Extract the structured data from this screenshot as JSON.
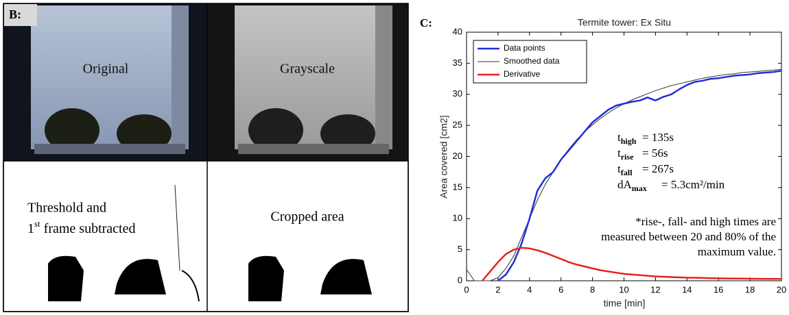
{
  "panel_b": {
    "label": "B:",
    "images": [
      {
        "label": "Original"
      },
      {
        "label": "Grayscale"
      },
      {
        "label": "Threshold and",
        "label_2": {
          "number": "1",
          "suffix": "st",
          "rest": " frame subtracted"
        }
      },
      {
        "label": "Cropped area"
      }
    ]
  },
  "chart_data": {
    "type": "line",
    "panel_label": "C:",
    "title": "Termite tower: Ex Situ",
    "xlabel": "time [min]",
    "ylabel": "Area covered [cm2]",
    "xlim": [
      0,
      20
    ],
    "xticks": [
      0,
      2,
      4,
      6,
      8,
      10,
      12,
      14,
      16,
      18,
      20
    ],
    "ylim": [
      0,
      40
    ],
    "yticks": [
      0,
      5,
      10,
      15,
      20,
      25,
      30,
      35,
      40
    ],
    "legend": "upper-left",
    "x": [
      0,
      0.5,
      1,
      1.5,
      2,
      2.5,
      3,
      3.5,
      4,
      4.5,
      5,
      5.5,
      6,
      6.5,
      7,
      7.5,
      8,
      8.5,
      9,
      9.5,
      10,
      10.5,
      11,
      11.5,
      12,
      12.5,
      13,
      13.5,
      14,
      14.5,
      15,
      15.5,
      16,
      16.5,
      17,
      17.5,
      18,
      18.5,
      19,
      19.5,
      20
    ],
    "series": [
      {
        "name": "Data points",
        "color": "#1f2fd6",
        "width": 2.5,
        "values": [
          null,
          null,
          null,
          null,
          0,
          1,
          3,
          6,
          10,
          14.5,
          16.5,
          17.5,
          19.5,
          21,
          22.5,
          24,
          25.5,
          26.5,
          27.5,
          28.2,
          28.5,
          28.8,
          29,
          29.5,
          29,
          29.6,
          30,
          30.8,
          31.5,
          32,
          32.2,
          32.5,
          32.6,
          32.8,
          33,
          33.1,
          33.2,
          33.4,
          33.5,
          33.6,
          33.8
        ]
      },
      {
        "name": "Smoothed data",
        "color": "#333333",
        "width": 1,
        "values": [
          1.8,
          0,
          0,
          0,
          0.5,
          2,
          4,
          7,
          10,
          13,
          15.5,
          17.5,
          19.5,
          21.2,
          22.7,
          24,
          25.1,
          26.1,
          27,
          27.8,
          28.5,
          29.1,
          29.6,
          30.1,
          30.6,
          31,
          31.4,
          31.7,
          32,
          32.3,
          32.6,
          32.8,
          33,
          33.2,
          33.3,
          33.5,
          33.6,
          33.7,
          33.8,
          33.9,
          34
        ]
      },
      {
        "name": "Derivative",
        "color": "#e8201e",
        "width": 2.5,
        "values": [
          null,
          null,
          0,
          1.5,
          3,
          4.3,
          5,
          5.3,
          5.2,
          4.9,
          4.5,
          4,
          3.5,
          3,
          2.6,
          2.3,
          2,
          1.7,
          1.5,
          1.3,
          1.1,
          1,
          0.9,
          0.8,
          0.7,
          0.65,
          0.6,
          0.55,
          0.5,
          0.48,
          0.45,
          0.42,
          0.4,
          0.38,
          0.36,
          0.35,
          0.33,
          0.32,
          0.31,
          0.3,
          0.3
        ]
      }
    ],
    "annotations": [
      {
        "symbol": "t",
        "subscript": "high",
        "text": "= 135s"
      },
      {
        "symbol": "t",
        "subscript": "rise",
        "text": "= 56s"
      },
      {
        "symbol": "t",
        "subscript": "fall",
        "text": "= 267s"
      },
      {
        "symbol": "dA",
        "subscript": "max",
        "text": "= 5.3cm²/min"
      }
    ],
    "note": [
      "*rise-, fall- and high times are",
      "measured between 20 and 80% of the",
      "maximum value."
    ]
  }
}
